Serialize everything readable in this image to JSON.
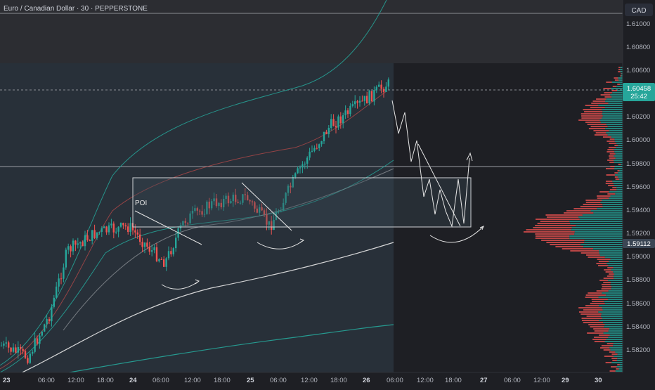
{
  "header": {
    "symbol_title": "Euro / Canadian Dollar · 30 · PEPPERSTONE",
    "currency": "CAD"
  },
  "price_scale": {
    "ticks": [
      "1.61000",
      "1.60800",
      "1.60600",
      "1.60200",
      "1.60000",
      "1.59800",
      "1.59600",
      "1.59400",
      "1.59200",
      "1.59000",
      "1.58800",
      "1.58600",
      "1.58400",
      "1.58200"
    ],
    "last_price": "1.60458",
    "countdown": "25:42",
    "marked_price": "1.59112"
  },
  "time_axis": {
    "labels": [
      "23",
      "06:00",
      "12:00",
      "18:00",
      "24",
      "06:00",
      "12:00",
      "18:00",
      "25",
      "06:00",
      "12:00",
      "18:00",
      "26",
      "06:00",
      "12:00",
      "18:00",
      "27",
      "06:00",
      "12:00",
      "29",
      "30"
    ]
  },
  "annotations": {
    "poi_label": "POI"
  },
  "colors": {
    "bull": "#26a69a",
    "bear": "#ef5350",
    "background": "#1e1f24",
    "zone_fill": "#3a4a55",
    "label_green": "#26a69a",
    "label_dark": "#3b4654"
  },
  "chart_data": {
    "type": "candlestick",
    "symbol": "EURCAD",
    "timeframe": "30",
    "ylim": [
      1.5802,
      1.6116
    ],
    "last_price": 1.60458,
    "marked_price": 1.59112,
    "poi_zone": {
      "from_x": "24 00:00",
      "to_x": "27 00:00",
      "low": 1.5926,
      "high": 1.5967
    },
    "horizontal_lines": [
      1.6115,
      1.5976
    ],
    "close_path": {
      "x": [
        "23 00:00",
        "23 06:00",
        "23 09:00",
        "23 12:00",
        "23 18:00",
        "24 00:00",
        "24 06:00",
        "24 09:00",
        "24 12:00",
        "24 18:00",
        "25 00:00",
        "25 06:00",
        "25 12:00",
        "25 18:00",
        "26 00:00",
        "26 06:00"
      ],
      "y": [
        1.5825,
        1.5815,
        1.585,
        1.5905,
        1.592,
        1.5925,
        1.5905,
        1.5895,
        1.593,
        1.5945,
        1.595,
        1.5925,
        1.5975,
        1.601,
        1.603,
        1.6045
      ]
    },
    "projection_path": {
      "x": [
        "26 06:00",
        "26 12:00",
        "26 18:00",
        "27 00:00"
      ],
      "y": [
        1.602,
        1.595,
        1.593,
        1.598
      ]
    }
  }
}
